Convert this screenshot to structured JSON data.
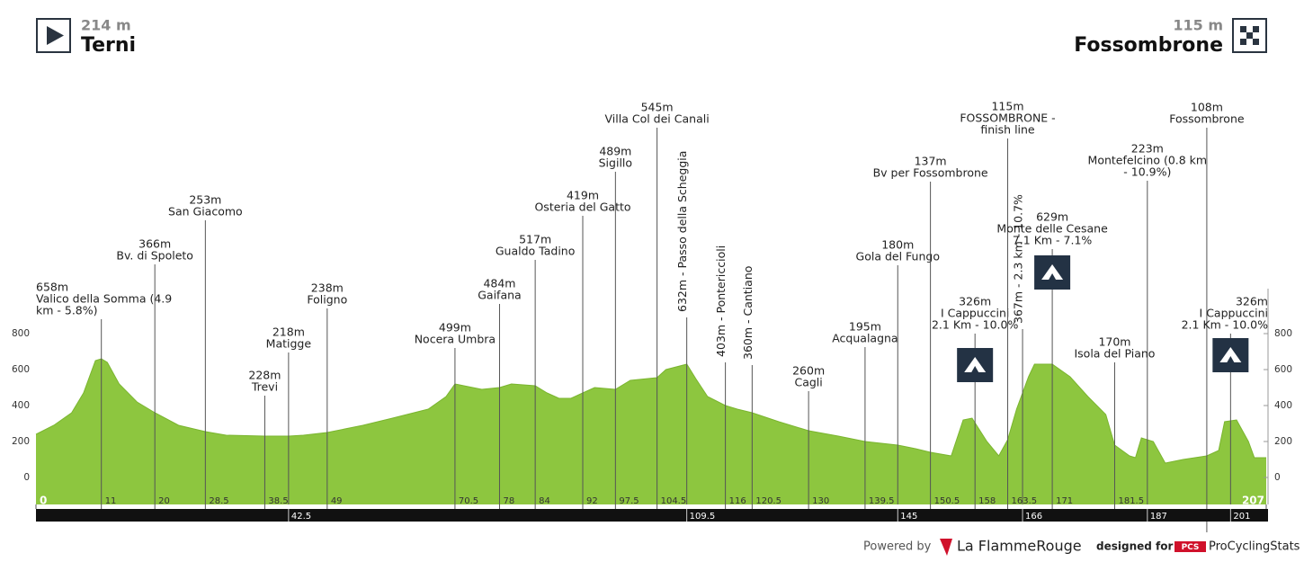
{
  "start": {
    "elevation": "214 m",
    "name": "Terni"
  },
  "finish": {
    "elevation": "115 m",
    "name": "Fossombrone"
  },
  "chart_data": {
    "type": "area",
    "color": "#8dc63f",
    "x": [
      0,
      3,
      6,
      8,
      10,
      11,
      12,
      14,
      17,
      20,
      24,
      28.5,
      32,
      38.5,
      42.5,
      45,
      49,
      55,
      60,
      66,
      69,
      70.5,
      72,
      75,
      78,
      80,
      84,
      86,
      88,
      90,
      92,
      94,
      97.5,
      100,
      104.5,
      106,
      109.5,
      111,
      113,
      116,
      118,
      120.5,
      125,
      130,
      135,
      139.5,
      145,
      148,
      150.5,
      154,
      156,
      157.5,
      160,
      162,
      163.5,
      165,
      167,
      168,
      171,
      174,
      177,
      180,
      181.5,
      184,
      185,
      186,
      188,
      190,
      193,
      197,
      199,
      200,
      202,
      204,
      205,
      207
    ],
    "values": [
      240,
      290,
      360,
      470,
      650,
      660,
      640,
      520,
      420,
      360,
      290,
      255,
      235,
      230,
      230,
      235,
      250,
      290,
      330,
      380,
      450,
      520,
      510,
      490,
      500,
      520,
      510,
      470,
      440,
      440,
      470,
      500,
      490,
      540,
      555,
      600,
      630,
      550,
      450,
      400,
      380,
      360,
      310,
      260,
      230,
      200,
      180,
      160,
      140,
      120,
      320,
      330,
      200,
      120,
      210,
      380,
      560,
      630,
      630,
      560,
      450,
      350,
      180,
      120,
      110,
      220,
      200,
      80,
      100,
      120,
      150,
      310,
      320,
      200,
      110,
      110
    ],
    "xlim": [
      0,
      207
    ],
    "ylim": [
      -150,
      1000
    ],
    "yticks": [
      0,
      200,
      400,
      600,
      800
    ]
  },
  "markers": [
    {
      "km": 11,
      "lines": [
        "658m",
        "Valico della Somma (4.9",
        "km - 5.8%)"
      ]
    },
    {
      "km": 20,
      "lines": [
        "366m",
        "Bv. di Spoleto"
      ]
    },
    {
      "km": 28.5,
      "lines": [
        "253m",
        "San Giacomo"
      ]
    },
    {
      "km": 38.5,
      "lines": [
        "228m",
        "Trevi"
      ]
    },
    {
      "km": 42.5,
      "lines": [
        "218m",
        "Matigge"
      ]
    },
    {
      "km": 49,
      "lines": [
        "238m",
        "Foligno"
      ]
    },
    {
      "km": 70.5,
      "lines": [
        "499m",
        "Nocera Umbra"
      ]
    },
    {
      "km": 78,
      "lines": [
        "484m",
        "Gaifana"
      ]
    },
    {
      "km": 84,
      "lines": [
        "517m",
        "Gualdo Tadino"
      ]
    },
    {
      "km": 92,
      "lines": [
        "419m",
        "Osteria del Gatto"
      ]
    },
    {
      "km": 97.5,
      "lines": [
        "489m",
        "Sigillo"
      ]
    },
    {
      "km": 104.5,
      "lines": [
        "545m",
        "Villa Col dei Canali"
      ]
    },
    {
      "km": 109.5,
      "lines": [
        "632m - Passo della Scheggia"
      ],
      "rotated": true
    },
    {
      "km": 116,
      "lines": [
        "403m - Pontericcioli"
      ],
      "rotated": true
    },
    {
      "km": 120.5,
      "lines": [
        "360m - Cantiano"
      ],
      "rotated": true
    },
    {
      "km": 130,
      "lines": [
        "260m",
        "Cagli"
      ]
    },
    {
      "km": 139.5,
      "lines": [
        "195m",
        "Acqualagna"
      ]
    },
    {
      "km": 145,
      "lines": [
        "180m",
        "Gola del Fungo"
      ]
    },
    {
      "km": 150.5,
      "lines": [
        "137m",
        "Bv per Fossombrone"
      ]
    },
    {
      "km": 158,
      "lines": [
        "326m",
        "I Cappuccini",
        "2.1 Km - 10.0%"
      ],
      "climb": true
    },
    {
      "km": 163.5,
      "lines": [
        "115m",
        "FOSSOMBRONE -",
        "finish line"
      ]
    },
    {
      "km": 166,
      "lines": [
        "367m - 2.3 km - 10.7%"
      ],
      "rotated": true
    },
    {
      "km": 171,
      "lines": [
        "629m",
        "Monte delle Cesane",
        "7.1 Km - 7.1%"
      ],
      "climb": true
    },
    {
      "km": 181.5,
      "lines": [
        "170m",
        "Isola del Piano"
      ]
    },
    {
      "km": 187,
      "lines": [
        "223m",
        "Montefelcino (0.8 km",
        "- 10.9%)"
      ]
    },
    {
      "km": 197,
      "lines": [
        "108m",
        "Fossombrone"
      ]
    },
    {
      "km": 201,
      "lines": [
        "326m",
        "I Cappuccini",
        "2.1 Km - 10.0%"
      ],
      "climb": true
    }
  ],
  "km_ticks": [
    0,
    11,
    20,
    28.5,
    38.5,
    49,
    70.5,
    78,
    84,
    92,
    97.5,
    104.5,
    116,
    120.5,
    130,
    139.5,
    150.5,
    158,
    163.5,
    171,
    181.5,
    207
  ],
  "strip_ticks": [
    42.5,
    109.5,
    145,
    166,
    187,
    201
  ],
  "footer": {
    "powered_by": "Powered by",
    "brand": "La FlammeRouge",
    "designed_for": "designed for",
    "pcs": "PCS",
    "site": "ProCyclingStats"
  }
}
